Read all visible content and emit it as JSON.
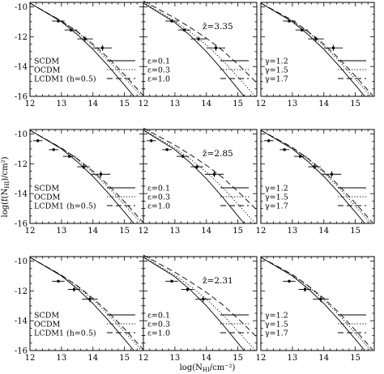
{
  "figure": {
    "xlabel": "log(N",
    "xlabel_sub": "HI",
    "xlabel_tail": "/cm⁻²)",
    "ylabel": "log(f(N",
    "ylabel_sub": "HI",
    "ylabel_tail": ")/cm²)"
  },
  "rows": [
    {
      "zbar": "z̄=3.35"
    },
    {
      "zbar": "z̄=2.85"
    },
    {
      "zbar": "z̄=2.31"
    }
  ],
  "legends": {
    "models": [
      "SCDM",
      "OCDM",
      "LCDM1 (h=0.5)"
    ],
    "epsilon": [
      "ε=0.1",
      "ε=0.3",
      "ε=1.0"
    ],
    "gamma": [
      "γ=1.2",
      "γ=1.5",
      "γ=1.7"
    ]
  },
  "chart_data": {
    "type": "line",
    "layout": "3x3 grid of panels sharing axes",
    "xlim": [
      12,
      15.6
    ],
    "ylim": [
      -16,
      -9.7
    ],
    "xticks": [
      12,
      13,
      14,
      15
    ],
    "yticks": [
      -16,
      -14,
      -12,
      -10
    ],
    "xtick_labels": [
      "12",
      "13",
      "14",
      "15"
    ],
    "ytick_labels": [
      "-16",
      "-14",
      "-12",
      "-10"
    ],
    "columns": [
      {
        "legend_labels": [
          "SCDM",
          "OCDM",
          "LCDM1 (h=0.5)"
        ],
        "series": [
          {
            "label": "SCDM",
            "style": "solid",
            "curve": [
              [
                12.0,
                -9.75
              ],
              [
                13.0,
                -11.0
              ],
              [
                13.5,
                -11.85
              ],
              [
                14.0,
                -12.85
              ],
              [
                14.5,
                -14.0
              ],
              [
                15.0,
                -15.25
              ],
              [
                15.3,
                -16.0
              ]
            ]
          },
          {
            "label": "OCDM",
            "style": "dotted",
            "curve": [
              [
                12.0,
                -9.75
              ],
              [
                13.0,
                -10.95
              ],
              [
                13.5,
                -11.7
              ],
              [
                14.0,
                -12.6
              ],
              [
                14.5,
                -13.6
              ],
              [
                15.0,
                -14.75
              ],
              [
                15.55,
                -16.0
              ]
            ]
          },
          {
            "label": "LCDM1 (h=0.5)",
            "style": "dashed",
            "curve": [
              [
                12.0,
                -9.75
              ],
              [
                13.0,
                -10.95
              ],
              [
                13.5,
                -11.65
              ],
              [
                14.0,
                -12.5
              ],
              [
                14.5,
                -13.45
              ],
              [
                15.0,
                -14.55
              ],
              [
                15.6,
                -15.95
              ]
            ]
          }
        ]
      },
      {
        "legend_labels": [
          "ε=0.1",
          "ε=0.3",
          "ε=1.0"
        ],
        "series": [
          {
            "label": "ε=0.1",
            "style": "solid",
            "curve": [
              [
                12.0,
                -9.75
              ],
              [
                13.0,
                -11.05
              ],
              [
                13.5,
                -11.95
              ],
              [
                14.0,
                -13.0
              ],
              [
                14.5,
                -14.2
              ],
              [
                15.0,
                -15.5
              ],
              [
                15.2,
                -16.0
              ]
            ]
          },
          {
            "label": "ε=0.3",
            "style": "dotted",
            "curve": [
              [
                12.0,
                -9.7
              ],
              [
                13.0,
                -10.95
              ],
              [
                13.5,
                -11.7
              ],
              [
                14.0,
                -12.55
              ],
              [
                14.5,
                -13.55
              ],
              [
                15.0,
                -14.7
              ],
              [
                15.55,
                -16.0
              ]
            ]
          },
          {
            "label": "ε=1.0",
            "style": "dashed",
            "curve": [
              [
                12.0,
                -9.6
              ],
              [
                13.0,
                -10.75
              ],
              [
                13.5,
                -11.4
              ],
              [
                14.0,
                -12.1
              ],
              [
                14.5,
                -12.9
              ],
              [
                15.0,
                -13.85
              ],
              [
                15.6,
                -15.1
              ]
            ]
          }
        ]
      },
      {
        "legend_labels": [
          "γ=1.2",
          "γ=1.5",
          "γ=1.7"
        ],
        "series": [
          {
            "label": "γ=1.2",
            "style": "solid",
            "curve": [
              [
                12.0,
                -9.75
              ],
              [
                13.0,
                -11.0
              ],
              [
                13.5,
                -11.85
              ],
              [
                14.0,
                -12.85
              ],
              [
                14.5,
                -14.0
              ],
              [
                15.0,
                -15.25
              ],
              [
                15.3,
                -16.0
              ]
            ]
          },
          {
            "label": "γ=1.5",
            "style": "dotted",
            "curve": [
              [
                12.0,
                -9.75
              ],
              [
                13.0,
                -10.95
              ],
              [
                13.5,
                -11.7
              ],
              [
                14.0,
                -12.6
              ],
              [
                14.5,
                -13.65
              ],
              [
                15.0,
                -14.85
              ],
              [
                15.5,
                -16.0
              ]
            ]
          },
          {
            "label": "γ=1.7",
            "style": "dashed",
            "curve": [
              [
                12.0,
                -9.75
              ],
              [
                13.0,
                -10.9
              ],
              [
                13.5,
                -11.65
              ],
              [
                14.0,
                -12.5
              ],
              [
                14.5,
                -13.5
              ],
              [
                15.0,
                -14.65
              ],
              [
                15.55,
                -15.95
              ]
            ]
          }
        ]
      }
    ],
    "observations": [
      {
        "row": "z̄=3.35",
        "points": [
          {
            "x": 12.9,
            "y": -10.95,
            "xerr": 0.2,
            "yerr": 0.1
          },
          {
            "x": 13.3,
            "y": -11.55,
            "xerr": 0.2,
            "yerr": 0.1
          },
          {
            "x": 13.75,
            "y": -12.15,
            "xerr": 0.25,
            "yerr": 0.15
          },
          {
            "x": 14.3,
            "y": -12.75,
            "xerr": 0.3,
            "yerr": 0.2
          }
        ]
      },
      {
        "row": "z̄=2.85",
        "points": [
          {
            "x": 12.25,
            "y": -10.45,
            "xerr": 0.15,
            "yerr": 0.1
          },
          {
            "x": 12.75,
            "y": -11.05,
            "xerr": 0.15,
            "yerr": 0.1
          },
          {
            "x": 13.25,
            "y": -11.5,
            "xerr": 0.2,
            "yerr": 0.1
          },
          {
            "x": 13.7,
            "y": -12.2,
            "xerr": 0.2,
            "yerr": 0.15
          },
          {
            "x": 14.25,
            "y": -12.7,
            "xerr": 0.3,
            "yerr": 0.2
          }
        ]
      },
      {
        "row": "z̄=2.31",
        "points": [
          {
            "x": 12.9,
            "y": -11.35,
            "xerr": 0.2,
            "yerr": 0.1
          },
          {
            "x": 13.4,
            "y": -11.9,
            "xerr": 0.2,
            "yerr": 0.15
          },
          {
            "x": 13.9,
            "y": -12.55,
            "xerr": 0.25,
            "yerr": 0.2
          }
        ]
      }
    ]
  }
}
